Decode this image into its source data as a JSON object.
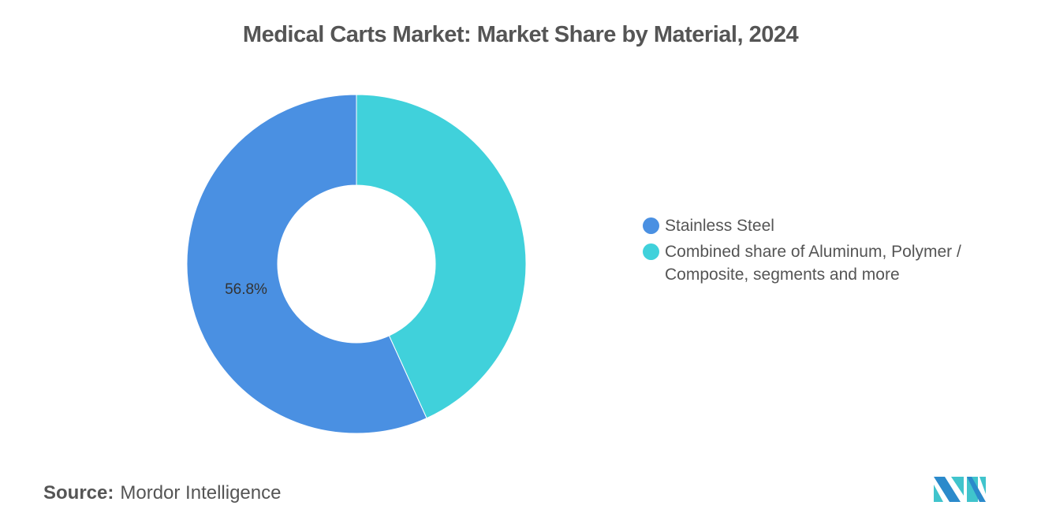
{
  "title": "Medical Carts Market: Market Share by Material, 2024",
  "chart_data": {
    "type": "pie",
    "donut": true,
    "title": "Medical Carts Market: Market Share by Material, 2024",
    "categories": [
      "Stainless Steel",
      "Combined share of Aluminum, Polymer / Composite, segments and more"
    ],
    "values": [
      56.8,
      43.2
    ],
    "data_labels": [
      "56.8%",
      ""
    ],
    "colors": [
      "#4A90E2",
      "#40D1DB"
    ],
    "legend_position": "right"
  },
  "source": {
    "label": "Source:",
    "value": "Mordor Intelligence"
  },
  "logo": {
    "text": "Mordor Intelligence",
    "colors": [
      "#2B8ACB",
      "#40C4CC"
    ]
  }
}
